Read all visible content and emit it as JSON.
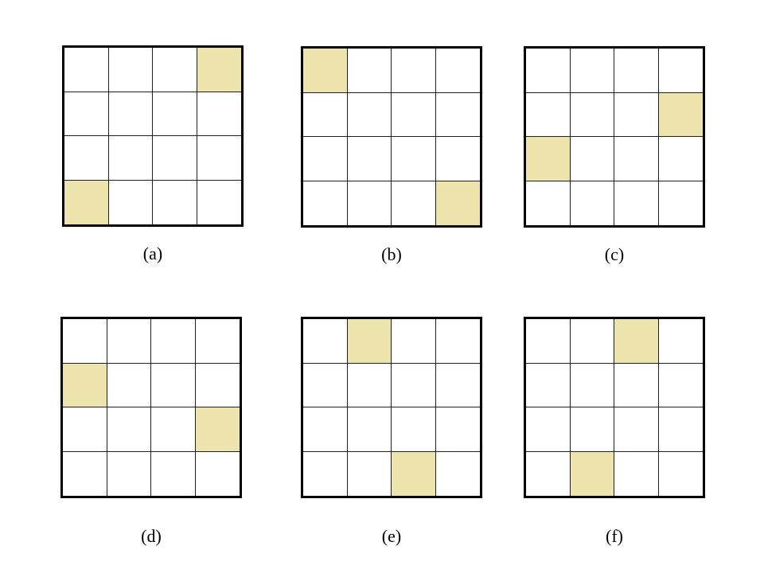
{
  "figure": {
    "description": "Six 4x4 square grids, each with two shaded unit cells, labeled (a) through (f)",
    "grid_rows": 4,
    "grid_cols": 4,
    "colors": {
      "shaded_cell": "#ede3ac",
      "outer_border": "#000000",
      "inner_line": "#1f1f1f",
      "background": "#ffffff",
      "label_text": "#000000"
    },
    "panels": [
      {
        "label": "(a)",
        "shaded_cells": [
          [
            0,
            3
          ],
          [
            3,
            0
          ]
        ]
      },
      {
        "label": "(b)",
        "shaded_cells": [
          [
            0,
            0
          ],
          [
            3,
            3
          ]
        ]
      },
      {
        "label": "(c)",
        "shaded_cells": [
          [
            1,
            3
          ],
          [
            2,
            0
          ]
        ]
      },
      {
        "label": "(d)",
        "shaded_cells": [
          [
            1,
            0
          ],
          [
            2,
            3
          ]
        ]
      },
      {
        "label": "(e)",
        "shaded_cells": [
          [
            0,
            1
          ],
          [
            3,
            2
          ]
        ]
      },
      {
        "label": "(f)",
        "shaded_cells": [
          [
            0,
            2
          ],
          [
            3,
            1
          ]
        ]
      }
    ]
  }
}
